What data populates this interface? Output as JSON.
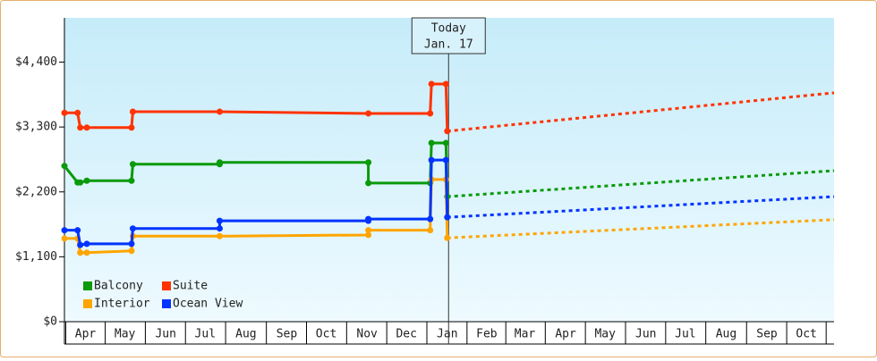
{
  "chart_data": {
    "type": "line",
    "ylim": [
      0,
      5150
    ],
    "yticks": [
      {
        "value": 0,
        "label": "$0"
      },
      {
        "value": 1100,
        "label": "$1,100"
      },
      {
        "value": 2200,
        "label": "$2,200"
      },
      {
        "value": 3300,
        "label": "$3,300"
      },
      {
        "value": 4400,
        "label": "$4,400"
      }
    ],
    "xlim": [
      -1,
      584
    ],
    "xticks": [
      {
        "value": 15,
        "label": "Apr"
      },
      {
        "value": 45,
        "label": "May"
      },
      {
        "value": 76,
        "label": "Jun"
      },
      {
        "value": 106,
        "label": "Jul"
      },
      {
        "value": 137,
        "label": "Aug"
      },
      {
        "value": 168,
        "label": "Sep"
      },
      {
        "value": 198,
        "label": "Oct"
      },
      {
        "value": 229,
        "label": "Nov"
      },
      {
        "value": 259,
        "label": "Dec"
      },
      {
        "value": 290,
        "label": "Jan"
      },
      {
        "value": 320,
        "label": "Feb"
      },
      {
        "value": 349,
        "label": "Mar"
      },
      {
        "value": 380,
        "label": "Apr"
      },
      {
        "value": 410,
        "label": "May"
      },
      {
        "value": 441,
        "label": "Jun"
      },
      {
        "value": 471,
        "label": "Jul"
      },
      {
        "value": 502,
        "label": "Aug"
      },
      {
        "value": 533,
        "label": "Sep"
      },
      {
        "value": 563,
        "label": "Oct"
      }
    ],
    "annotation": {
      "x": 291,
      "lines": [
        "Today",
        "Jan. 17"
      ]
    },
    "series": [
      {
        "name": "Balcony",
        "color": "#0a9a0a",
        "x": [
          -1,
          9,
          11,
          16,
          50,
          51,
          117,
          117,
          230,
          230,
          277,
          278,
          289,
          290
        ],
        "values": [
          2640,
          2360,
          2360,
          2390,
          2390,
          2670,
          2670,
          2700,
          2700,
          2350,
          2350,
          3030,
          3030,
          2120
        ],
        "projection": {
          "x": [
            290,
            584
          ],
          "values": [
            2120,
            2560
          ]
        }
      },
      {
        "name": "Suite",
        "color": "#ff3300",
        "x": [
          -1,
          9,
          11,
          16,
          50,
          51,
          117,
          230,
          277,
          278,
          289,
          290
        ],
        "values": [
          3540,
          3540,
          3290,
          3290,
          3290,
          3560,
          3560,
          3530,
          3530,
          4030,
          4030,
          3230
        ],
        "projection": {
          "x": [
            290,
            584
          ],
          "values": [
            3230,
            3880
          ]
        }
      },
      {
        "name": "Interior",
        "color": "#ffa500",
        "x": [
          -1,
          9,
          11,
          16,
          50,
          51,
          117,
          230,
          230,
          277,
          278,
          289,
          290
        ],
        "values": [
          1410,
          1410,
          1170,
          1170,
          1200,
          1450,
          1450,
          1470,
          1550,
          1550,
          2410,
          2410,
          1420
        ],
        "projection": {
          "x": [
            290,
            584
          ],
          "values": [
            1420,
            1730
          ]
        }
      },
      {
        "name": "Ocean View",
        "color": "#0033ff",
        "x": [
          -1,
          9,
          11,
          16,
          50,
          51,
          117,
          117,
          230,
          230,
          277,
          278,
          289,
          290
        ],
        "values": [
          1550,
          1550,
          1300,
          1320,
          1320,
          1580,
          1580,
          1710,
          1710,
          1740,
          1740,
          2740,
          2740,
          1770
        ],
        "projection": {
          "x": [
            290,
            584
          ],
          "values": [
            1770,
            2120
          ]
        }
      }
    ]
  }
}
